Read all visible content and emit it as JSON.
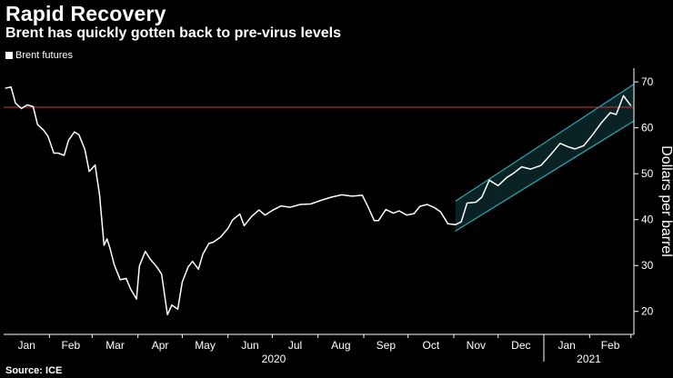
{
  "chart_data": {
    "type": "line",
    "title": "Rapid Recovery",
    "subtitle": "Brent has quickly gotten back to pre-virus levels",
    "ylabel": "Dollars per barrel",
    "ylim": [
      15,
      73
    ],
    "yticks": [
      20,
      30,
      40,
      50,
      60,
      70
    ],
    "yaxis_position": "right",
    "grid": false,
    "legend_position": "top-left",
    "months": [
      "Jan",
      "Feb",
      "Mar",
      "Apr",
      "May",
      "Jun",
      "Jul",
      "Aug",
      "Sep",
      "Oct",
      "Nov",
      "Dec",
      "Jan",
      "Feb"
    ],
    "years": [
      {
        "label": "2020"
      },
      {
        "label": "2021"
      }
    ],
    "series": [
      {
        "name": "Brent futures",
        "color": "#ffffff",
        "x": [
          "2020-01-02",
          "2020-01-06",
          "2020-01-09",
          "2020-01-13",
          "2020-01-17",
          "2020-01-21",
          "2020-01-24",
          "2020-01-28",
          "2020-01-31",
          "2020-02-04",
          "2020-02-07",
          "2020-02-11",
          "2020-02-14",
          "2020-02-18",
          "2020-02-21",
          "2020-02-25",
          "2020-02-28",
          "2020-03-03",
          "2020-03-06",
          "2020-03-09",
          "2020-03-11",
          "2020-03-13",
          "2020-03-16",
          "2020-03-18",
          "2020-03-20",
          "2020-03-24",
          "2020-03-27",
          "2020-03-31",
          "2020-04-02",
          "2020-04-06",
          "2020-04-09",
          "2020-04-14",
          "2020-04-17",
          "2020-04-21",
          "2020-04-24",
          "2020-04-28",
          "2020-05-01",
          "2020-05-05",
          "2020-05-08",
          "2020-05-12",
          "2020-05-15",
          "2020-05-19",
          "2020-05-22",
          "2020-05-27",
          "2020-06-01",
          "2020-06-04",
          "2020-06-09",
          "2020-06-12",
          "2020-06-17",
          "2020-06-22",
          "2020-06-26",
          "2020-07-01",
          "2020-07-07",
          "2020-07-13",
          "2020-07-20",
          "2020-07-27",
          "2020-08-03",
          "2020-08-10",
          "2020-08-17",
          "2020-08-24",
          "2020-08-31",
          "2020-09-04",
          "2020-09-08",
          "2020-09-11",
          "2020-09-16",
          "2020-09-21",
          "2020-09-25",
          "2020-09-30",
          "2020-10-05",
          "2020-10-09",
          "2020-10-14",
          "2020-10-19",
          "2020-10-23",
          "2020-10-28",
          "2020-11-02",
          "2020-11-06",
          "2020-11-10",
          "2020-11-16",
          "2020-11-20",
          "2020-11-25",
          "2020-12-01",
          "2020-12-07",
          "2020-12-11",
          "2020-12-17",
          "2020-12-23",
          "2020-12-30",
          "2021-01-06",
          "2021-01-12",
          "2021-01-18",
          "2021-01-22",
          "2021-01-28",
          "2021-02-03",
          "2021-02-09",
          "2021-02-15",
          "2021-02-19",
          "2021-02-24",
          "2021-02-26",
          "2021-03-01"
        ],
        "y": [
          68.6,
          68.9,
          65.4,
          64.2,
          65.0,
          64.6,
          60.7,
          59.5,
          58.2,
          54.5,
          54.5,
          54.0,
          57.3,
          59.1,
          58.5,
          55.3,
          50.5,
          51.9,
          45.3,
          34.4,
          35.8,
          33.8,
          30.1,
          28.5,
          26.9,
          27.2,
          24.9,
          22.7,
          29.9,
          33.1,
          31.5,
          29.6,
          28.1,
          19.3,
          21.4,
          20.5,
          26.4,
          29.7,
          30.9,
          29.2,
          32.5,
          34.8,
          35.1,
          36.2,
          38.1,
          39.9,
          41.2,
          38.7,
          40.7,
          42.1,
          41.0,
          42.0,
          43.0,
          42.7,
          43.3,
          43.4,
          44.2,
          44.9,
          45.4,
          45.1,
          45.3,
          42.7,
          39.8,
          39.8,
          42.2,
          41.4,
          41.9,
          41.0,
          41.3,
          42.9,
          43.3,
          42.6,
          41.7,
          39.1,
          38.9,
          39.5,
          43.6,
          43.8,
          44.9,
          48.6,
          47.4,
          49.2,
          50.0,
          51.5,
          51.0,
          51.8,
          54.3,
          56.6,
          55.8,
          55.4,
          56.1,
          58.5,
          61.1,
          63.3,
          62.9,
          67.0,
          66.1,
          64.8
        ]
      }
    ],
    "reference_line": {
      "y": 64.5,
      "color": "#c2312f"
    },
    "channel": {
      "start": "2020-11-02",
      "end": "2021-03-03",
      "lower_start": 37.5,
      "lower_end": 61.5,
      "upper_start": 44.0,
      "upper_end": 69.5,
      "color": "#2fa8b3"
    }
  },
  "source": "Source: ICE"
}
